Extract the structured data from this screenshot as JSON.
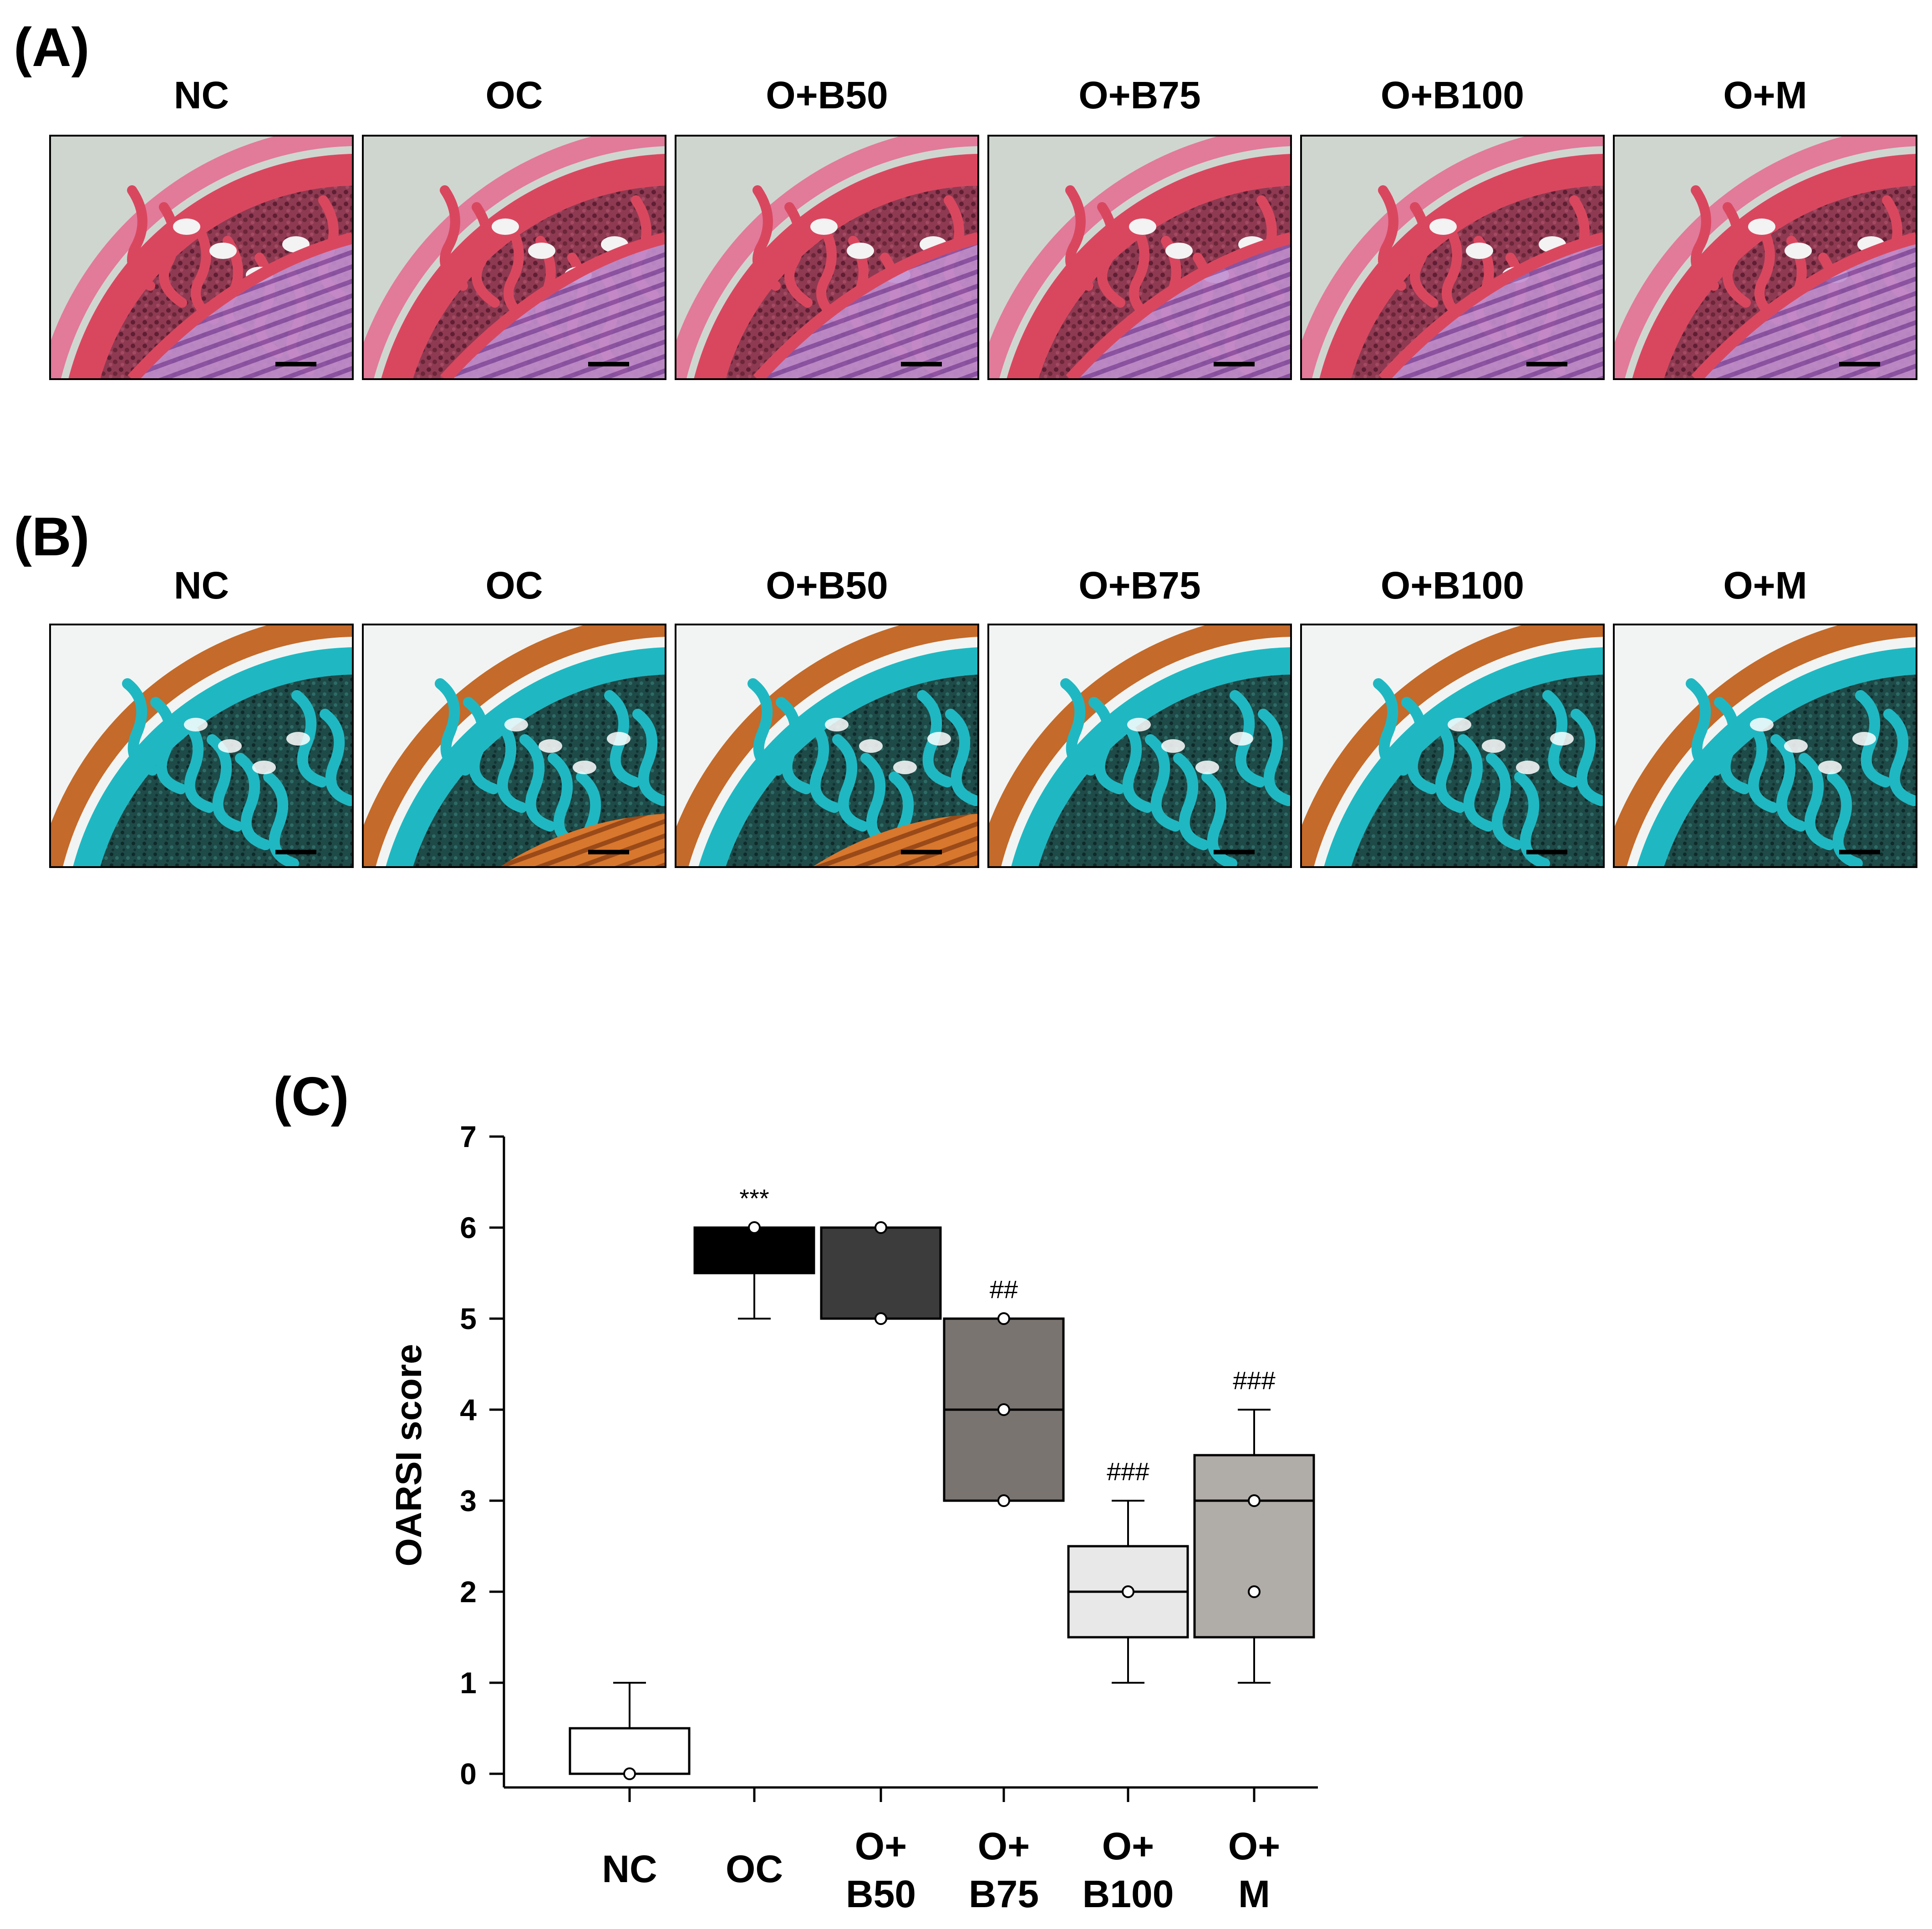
{
  "panel_a": {
    "label": "(A)",
    "groups": [
      "NC",
      "OC",
      "O+B50",
      "O+B75",
      "O+B100",
      "O+M"
    ],
    "stain_colors": {
      "background": "#cfd6d0",
      "matrix": "#d9475f",
      "marrow": "#7a2a40",
      "cartilage": "#9b66b4"
    }
  },
  "panel_b": {
    "label": "(B)",
    "groups": [
      "NC",
      "OC",
      "O+B50",
      "O+B75",
      "O+B100",
      "O+M"
    ],
    "stain_colors": {
      "background": "#f2f4f3",
      "bone": "#1fb8c2",
      "marrow": "#1b3b3a",
      "cartilage": "#c46a2a"
    }
  },
  "panel_c": {
    "label": "(C)"
  },
  "chart_data": {
    "type": "box",
    "title": "",
    "xlabel": "",
    "ylabel": "OARSI score",
    "ylim": [
      0,
      7
    ],
    "yticks": [
      0,
      1,
      2,
      3,
      4,
      5,
      6,
      7
    ],
    "categories": [
      {
        "line1": "NC",
        "line2": ""
      },
      {
        "line1": "OC",
        "line2": ""
      },
      {
        "line1": "O+",
        "line2": "B50"
      },
      {
        "line1": "O+",
        "line2": "B75"
      },
      {
        "line1": "O+",
        "line2": "B100"
      },
      {
        "line1": "O+",
        "line2": "M"
      }
    ],
    "boxes": [
      {
        "name": "NC",
        "whisker_low": 0,
        "q1": 0,
        "median": 0,
        "q3": 0.5,
        "whisker_high": 1,
        "points": [
          0
        ],
        "color": "#ffffff",
        "annotation": ""
      },
      {
        "name": "OC",
        "whisker_low": 5,
        "q1": 5.5,
        "median": 6,
        "q3": 6,
        "whisker_high": 6,
        "points": [
          6
        ],
        "color": "#000000",
        "annotation": "***"
      },
      {
        "name": "O+B50",
        "whisker_low": 5,
        "q1": 5,
        "median": 5,
        "q3": 6,
        "whisker_high": 6,
        "points": [
          6,
          5
        ],
        "color": "#3c3c3c",
        "annotation": ""
      },
      {
        "name": "O+B75",
        "whisker_low": 3,
        "q1": 3,
        "median": 4,
        "q3": 5,
        "whisker_high": 5,
        "points": [
          5,
          4,
          3
        ],
        "color": "#7a7470",
        "annotation": "##"
      },
      {
        "name": "O+B100",
        "whisker_low": 1,
        "q1": 1.5,
        "median": 2,
        "q3": 2.5,
        "whisker_high": 3,
        "points": [
          2
        ],
        "color": "#e8e8e8",
        "annotation": "###"
      },
      {
        "name": "O+M",
        "whisker_low": 1,
        "q1": 1.5,
        "median": 3,
        "q3": 3.5,
        "whisker_high": 4,
        "points": [
          3,
          2
        ],
        "color": "#b0aca8",
        "annotation": "###"
      }
    ]
  }
}
